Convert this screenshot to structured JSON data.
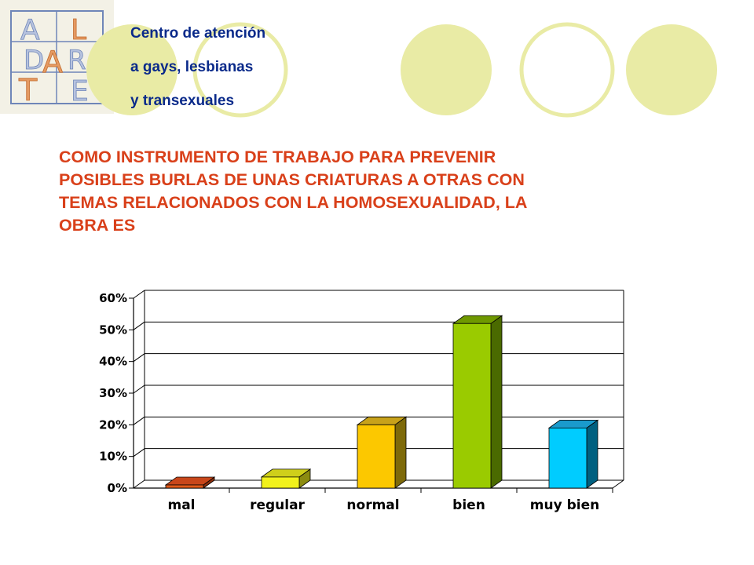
{
  "org": {
    "logo_letters": [
      "A",
      "L",
      "D",
      "A",
      "R",
      "T",
      "E"
    ],
    "lines": [
      "Centro de atención",
      "a gays, lesbianas",
      "y transexuales"
    ]
  },
  "headline": {
    "lines": [
      "COMO INSTRUMENTO DE TRABAJO PARA PREVENIR",
      "POSIBLES BURLAS DE UNAS CRIATURAS A OTRAS CON",
      "TEMAS RELACIONADOS CON LA HOMOSEXUALIDAD, LA",
      "OBRA ES"
    ]
  },
  "colors": {
    "org_text": "#0a2a8a",
    "headline": "#d9401a",
    "decor_circle": "#e9eba5",
    "bar_mal": "#e05a1a",
    "bar_regular": "#f2f21c",
    "bar_normal": "#fcc800",
    "bar_bien": "#9acb00",
    "bar_muy_bien": "#00ccff"
  },
  "chart_data": {
    "type": "bar",
    "style": "3d-column",
    "categories": [
      "mal",
      "regular",
      "normal",
      "bien",
      "muy bien"
    ],
    "values": [
      1,
      3.5,
      20,
      52,
      19
    ],
    "value_unit": "%",
    "ylim": [
      0,
      60
    ],
    "yticks": [
      0,
      10,
      20,
      30,
      40,
      50,
      60
    ],
    "ytick_labels": [
      "0%",
      "10%",
      "20%",
      "30%",
      "40%",
      "50%",
      "60%"
    ],
    "grid": true,
    "legend": "none",
    "title": "",
    "xlabel": "",
    "ylabel": ""
  }
}
